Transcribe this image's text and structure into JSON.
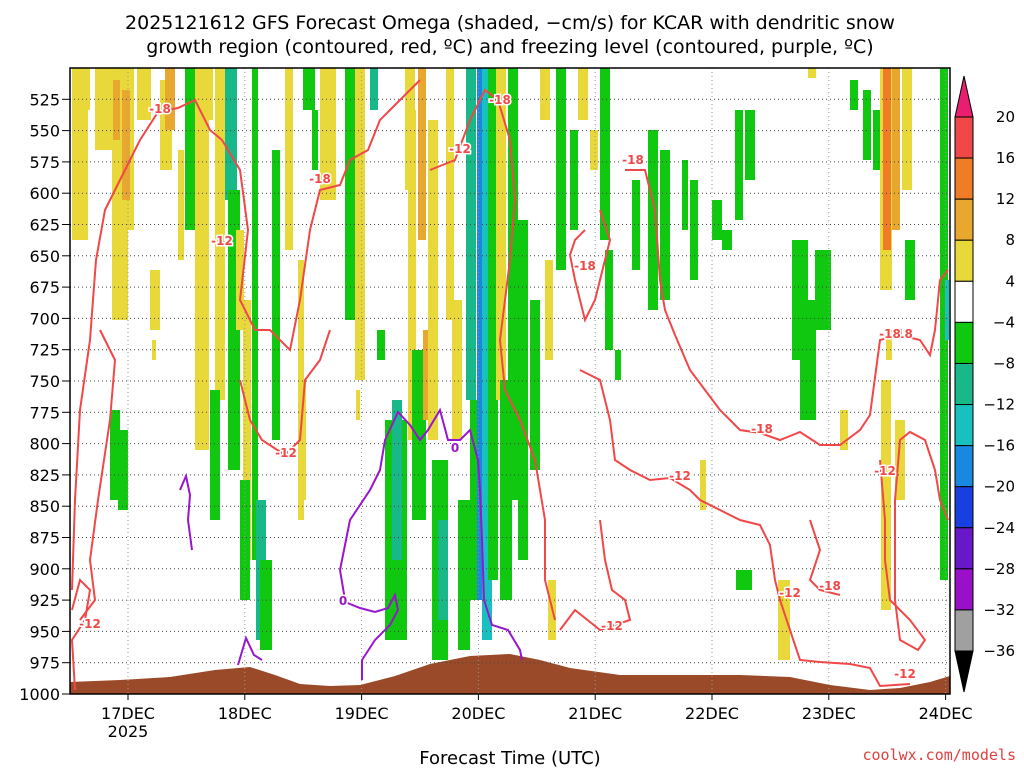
{
  "title_line1": "2025121612 GFS Forecast Omega (shaded, −cm/s) for KCAR with dendritic snow",
  "title_line2": "growth region (contoured, red, ºC) and freezing level (contoured, purple, ºC)",
  "credit": "coolwx.com/models",
  "colors": {
    "temp_contour": "#f04848",
    "freezing_contour": "#9a16cc",
    "terrain": "#9a4a28"
  },
  "chart_data": {
    "type": "heatmap",
    "title": "2025121612 GFS Forecast Omega (shaded, −cm/s) for KCAR with dendritic snow growth region (contoured, red, ºC) and freezing level (contoured, purple, ºC)",
    "xlabel": "Forecast Time (UTC)",
    "ylabel": "",
    "x_ticks": [
      "17DEC",
      "18DEC",
      "19DEC",
      "20DEC",
      "21DEC",
      "22DEC",
      "23DEC",
      "24DEC"
    ],
    "x_year_label": "2025",
    "y_ticks": [
      "525",
      "550",
      "575",
      "600",
      "625",
      "650",
      "675",
      "700",
      "725",
      "750",
      "775",
      "800",
      "825",
      "850",
      "875",
      "900",
      "925",
      "950",
      "975",
      "1000"
    ],
    "y_values": [
      525,
      550,
      575,
      600,
      625,
      650,
      675,
      700,
      725,
      750,
      775,
      800,
      825,
      850,
      875,
      900,
      925,
      950,
      975,
      1000
    ],
    "ylim": [
      500,
      1000
    ],
    "y_axis_inverted": true,
    "grid": true,
    "colorbar": {
      "labels": [
        "20",
        "16",
        "12",
        "8",
        "4",
        "−4",
        "−8",
        "−12",
        "−16",
        "−20",
        "−24",
        "−28",
        "−32",
        "−36"
      ],
      "colors": [
        "#e81e70",
        "#f04848",
        "#f07c28",
        "#e8a830",
        "#e8d83a",
        "#ffffff",
        "#10c810",
        "#18b888",
        "#18c0c0",
        "#1888e0",
        "#1840e0",
        "#6818c8",
        "#9a10c8",
        "#a0a0a0",
        "#000000"
      ]
    },
    "contour_labels": [
      {
        "text": "-18",
        "color": "red"
      },
      {
        "text": "-18",
        "color": "red"
      },
      {
        "text": "-18",
        "color": "red"
      },
      {
        "text": "-18",
        "color": "red"
      },
      {
        "text": "-18",
        "color": "red"
      },
      {
        "text": "-18",
        "color": "red"
      },
      {
        "text": "-18",
        "color": "red"
      },
      {
        "text": "-18",
        "color": "red"
      },
      {
        "text": "-18",
        "color": "red"
      },
      {
        "text": "-12",
        "color": "red"
      },
      {
        "text": "-12",
        "color": "red"
      },
      {
        "text": "-12",
        "color": "red"
      },
      {
        "text": "-12",
        "color": "red"
      },
      {
        "text": "-12",
        "color": "red"
      },
      {
        "text": "-12",
        "color": "red"
      },
      {
        "text": "-12",
        "color": "red"
      },
      {
        "text": "-12",
        "color": "red"
      },
      {
        "text": "-12",
        "color": "red"
      },
      {
        "text": "0",
        "color": "purple"
      },
      {
        "text": "0",
        "color": "purple"
      }
    ]
  }
}
